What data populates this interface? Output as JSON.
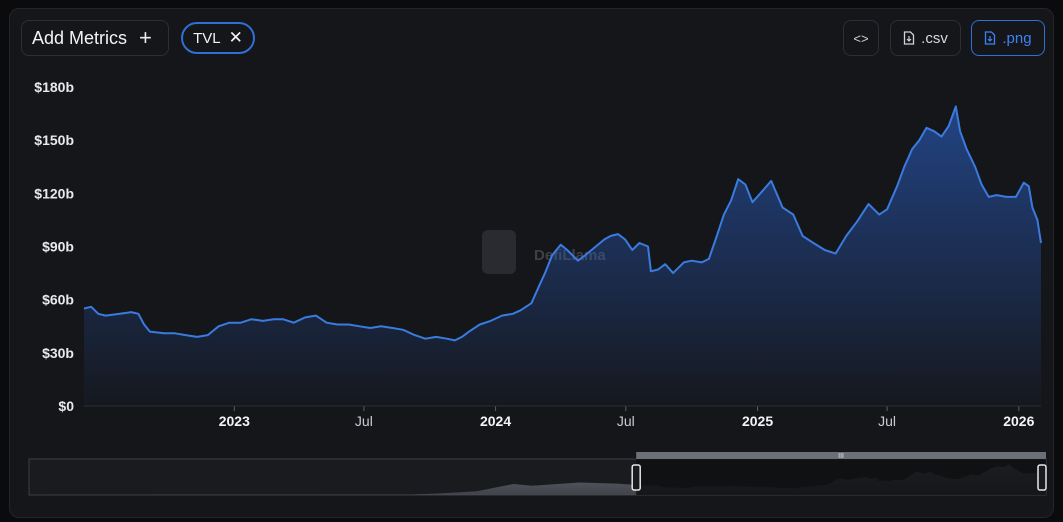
{
  "toolbar": {
    "add_metrics_label": "Add Metrics",
    "add_icon": "plus-icon",
    "metric_chip_label": "TVL",
    "metric_chip_remove_icon": "close-icon",
    "embed_icon": "code-icon",
    "csv_label": ".csv",
    "png_label": ".png",
    "download_icon": "file-download-icon"
  },
  "watermark": "DefiLlama",
  "colors": {
    "line": "#3a7be0",
    "accent": "#2f6fd6",
    "background": "#15161a"
  },
  "chart_data": {
    "type": "area",
    "series": [
      {
        "points": [
          [
            "2022-06-05",
            55
          ],
          [
            "2022-06-15",
            56
          ],
          [
            "2022-06-25",
            52
          ],
          [
            "2022-07-05",
            51
          ],
          [
            "2022-07-25",
            52
          ],
          [
            "2022-08-10",
            53
          ],
          [
            "2022-08-20",
            52
          ],
          [
            "2022-08-28",
            46
          ],
          [
            "2022-09-05",
            42
          ],
          [
            "2022-09-25",
            41
          ],
          [
            "2022-10-10",
            41
          ],
          [
            "2022-10-25",
            40
          ],
          [
            "2022-11-10",
            39
          ],
          [
            "2022-11-25",
            40
          ],
          [
            "2022-12-10",
            45
          ],
          [
            "2022-12-25",
            47
          ],
          [
            "2023-01-10",
            47
          ],
          [
            "2023-01-25",
            49
          ],
          [
            "2023-02-10",
            48
          ],
          [
            "2023-02-25",
            49
          ],
          [
            "2023-03-10",
            49
          ],
          [
            "2023-03-25",
            47
          ],
          [
            "2023-04-10",
            50
          ],
          [
            "2023-04-25",
            51
          ],
          [
            "2023-05-10",
            47
          ],
          [
            "2023-05-25",
            46
          ],
          [
            "2023-06-10",
            46
          ],
          [
            "2023-06-25",
            45
          ],
          [
            "2023-07-10",
            44
          ],
          [
            "2023-07-25",
            45
          ],
          [
            "2023-08-10",
            44
          ],
          [
            "2023-08-25",
            43
          ],
          [
            "2023-09-10",
            40
          ],
          [
            "2023-09-25",
            38
          ],
          [
            "2023-10-10",
            39
          ],
          [
            "2023-10-25",
            38
          ],
          [
            "2023-11-05",
            37
          ],
          [
            "2023-11-15",
            39
          ],
          [
            "2023-11-25",
            42
          ],
          [
            "2023-12-10",
            46
          ],
          [
            "2023-12-25",
            48
          ],
          [
            "2024-01-10",
            51
          ],
          [
            "2024-01-25",
            52
          ],
          [
            "2024-02-05",
            54
          ],
          [
            "2024-02-20",
            58
          ],
          [
            "2024-03-01",
            67
          ],
          [
            "2024-03-10",
            75
          ],
          [
            "2024-03-20",
            85
          ],
          [
            "2024-04-01",
            91
          ],
          [
            "2024-04-10",
            88
          ],
          [
            "2024-04-25",
            82
          ],
          [
            "2024-05-05",
            85
          ],
          [
            "2024-05-20",
            90
          ],
          [
            "2024-06-01",
            94
          ],
          [
            "2024-06-10",
            96
          ],
          [
            "2024-06-20",
            97
          ],
          [
            "2024-06-30",
            94
          ],
          [
            "2024-07-10",
            88
          ],
          [
            "2024-07-20",
            92
          ],
          [
            "2024-08-01",
            90
          ],
          [
            "2024-08-05",
            76
          ],
          [
            "2024-08-15",
            77
          ],
          [
            "2024-08-25",
            80
          ],
          [
            "2024-09-05",
            75
          ],
          [
            "2024-09-20",
            81
          ],
          [
            "2024-10-01",
            82
          ],
          [
            "2024-10-15",
            81
          ],
          [
            "2024-10-25",
            83
          ],
          [
            "2024-11-05",
            96
          ],
          [
            "2024-11-15",
            108
          ],
          [
            "2024-11-25",
            116
          ],
          [
            "2024-12-05",
            128
          ],
          [
            "2024-12-15",
            125
          ],
          [
            "2024-12-25",
            115
          ],
          [
            "2025-01-05",
            120
          ],
          [
            "2025-01-20",
            127
          ],
          [
            "2025-02-05",
            112
          ],
          [
            "2025-02-20",
            108
          ],
          [
            "2025-03-05",
            96
          ],
          [
            "2025-03-20",
            92
          ],
          [
            "2025-04-05",
            88
          ],
          [
            "2025-04-20",
            86
          ],
          [
            "2025-05-05",
            96
          ],
          [
            "2025-05-20",
            104
          ],
          [
            "2025-06-05",
            114
          ],
          [
            "2025-06-20",
            108
          ],
          [
            "2025-07-01",
            111
          ],
          [
            "2025-07-15",
            124
          ],
          [
            "2025-07-25",
            135
          ],
          [
            "2025-08-05",
            145
          ],
          [
            "2025-08-15",
            150
          ],
          [
            "2025-08-25",
            157
          ],
          [
            "2025-09-05",
            155
          ],
          [
            "2025-09-15",
            152
          ],
          [
            "2025-09-25",
            158
          ],
          [
            "2025-10-05",
            169
          ],
          [
            "2025-10-11",
            155
          ],
          [
            "2025-10-20",
            145
          ],
          [
            "2025-11-01",
            135
          ],
          [
            "2025-11-10",
            125
          ],
          [
            "2025-11-20",
            118
          ],
          [
            "2025-12-01",
            119
          ],
          [
            "2025-12-15",
            118
          ],
          [
            "2025-12-28",
            118
          ],
          [
            "2026-01-08",
            126
          ],
          [
            "2026-01-15",
            124
          ],
          [
            "2026-01-20",
            112
          ],
          [
            "2026-01-27",
            105
          ],
          [
            "2026-02-01",
            92
          ]
        ]
      }
    ],
    "x_ticks": [
      {
        "date": "2023-01-01",
        "label": "2023",
        "bold": true
      },
      {
        "date": "2023-07-01",
        "label": "Jul",
        "bold": false
      },
      {
        "date": "2024-01-01",
        "label": "2024",
        "bold": true
      },
      {
        "date": "2024-07-01",
        "label": "Jul",
        "bold": false
      },
      {
        "date": "2025-01-01",
        "label": "2025",
        "bold": true
      },
      {
        "date": "2025-07-01",
        "label": "Jul",
        "bold": false
      },
      {
        "date": "2026-01-01",
        "label": "2026",
        "bold": true
      }
    ],
    "y_ticks": [
      {
        "value": 0,
        "label": "$0"
      },
      {
        "value": 30,
        "label": "$30b"
      },
      {
        "value": 60,
        "label": "$60b"
      },
      {
        "value": 90,
        "label": "$90b"
      },
      {
        "value": 120,
        "label": "$120b"
      },
      {
        "value": 150,
        "label": "$150b"
      },
      {
        "value": 180,
        "label": "$180b"
      }
    ],
    "xlim": [
      "2022-06-05",
      "2026-02-01"
    ],
    "ylim": [
      0,
      180
    ],
    "grid": false,
    "brush": {
      "full_range": [
        "2017-01-01",
        "2026-02-01"
      ],
      "selected_range": [
        "2022-06-05",
        "2026-02-01"
      ]
    }
  }
}
